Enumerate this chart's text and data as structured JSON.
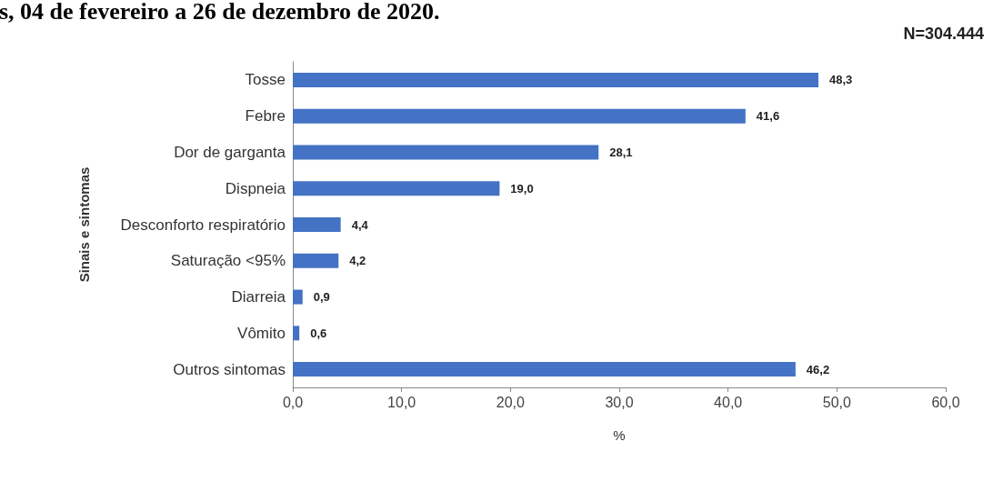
{
  "chart_data": {
    "type": "bar",
    "orientation": "horizontal",
    "title": "s, 04 de fevereiro a 26 de dezembro de 2020.",
    "annotations": [
      "N=304.444"
    ],
    "xlabel": "%",
    "ylabel": "Sinais e sintomas",
    "categories": [
      "Tosse",
      "Febre",
      "Dor de garganta",
      "Dispneia",
      "Desconforto respiratório",
      "Saturação <95%",
      "Diarreia",
      "Vômito",
      "Outros sintomas"
    ],
    "values": [
      48.3,
      41.6,
      28.1,
      19.0,
      4.4,
      4.2,
      0.9,
      0.6,
      46.2
    ],
    "value_labels": [
      "48,3",
      "41,6",
      "28,1",
      "19,0",
      "4,4",
      "4,2",
      "0,9",
      "0,6",
      "46,2"
    ],
    "color": "#4472c4",
    "xlim": [
      0,
      60
    ],
    "xticks": [
      {
        "value": 0,
        "label": "0,0"
      },
      {
        "value": 10,
        "label": "10,0"
      },
      {
        "value": 20,
        "label": "20,0"
      },
      {
        "value": 30,
        "label": "30,0"
      },
      {
        "value": 40,
        "label": "40,0"
      },
      {
        "value": 50,
        "label": "50,0"
      },
      {
        "value": 60,
        "label": "60,0"
      }
    ],
    "grid": false
  }
}
